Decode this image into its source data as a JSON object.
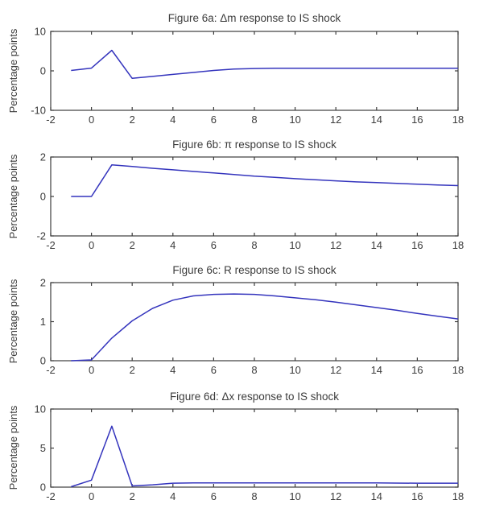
{
  "figure": {
    "ylabel_text": "Percentage points",
    "line_color": "#3434bd",
    "axis_color": "#3c3c3c",
    "text_color": "#3c3c3c",
    "background": "#ffffff"
  },
  "chart_data": [
    {
      "type": "line",
      "title": "Figure 6a: Δm response to IS shock",
      "ylabel": "Percentage points",
      "xlabel": "",
      "legend": "none",
      "grid": false,
      "xlim": [
        -2,
        18
      ],
      "ylim": [
        -10,
        10
      ],
      "xticks": [
        -2,
        0,
        2,
        4,
        6,
        8,
        10,
        12,
        14,
        16,
        18
      ],
      "yticks": [
        -10,
        0,
        10
      ],
      "x": [
        -1,
        0,
        1,
        2,
        3,
        4,
        5,
        6,
        7,
        8,
        9,
        10,
        11,
        12,
        13,
        14,
        15,
        16,
        17,
        18
      ],
      "y": [
        0.1,
        0.7,
        5.2,
        -1.9,
        -1.4,
        -0.9,
        -0.4,
        0.1,
        0.45,
        0.6,
        0.65,
        0.65,
        0.65,
        0.65,
        0.65,
        0.65,
        0.65,
        0.65,
        0.65,
        0.65
      ]
    },
    {
      "type": "line",
      "title": "Figure 6b: π response to IS shock",
      "ylabel": "Percentage points",
      "xlabel": "",
      "legend": "none",
      "grid": false,
      "xlim": [
        -2,
        18
      ],
      "ylim": [
        -2,
        2
      ],
      "xticks": [
        -2,
        0,
        2,
        4,
        6,
        8,
        10,
        12,
        14,
        16,
        18
      ],
      "yticks": [
        -2,
        0,
        2
      ],
      "x": [
        -1,
        0,
        1,
        2,
        3,
        4,
        5,
        6,
        7,
        8,
        9,
        10,
        11,
        12,
        13,
        14,
        15,
        16,
        17,
        18
      ],
      "y": [
        0,
        0,
        1.6,
        1.52,
        1.43,
        1.35,
        1.27,
        1.19,
        1.11,
        1.03,
        0.97,
        0.9,
        0.85,
        0.79,
        0.74,
        0.7,
        0.66,
        0.62,
        0.58,
        0.55
      ]
    },
    {
      "type": "line",
      "title": "Figure 6c: R response to IS shock",
      "ylabel": "Percentage points",
      "xlabel": "",
      "legend": "none",
      "grid": false,
      "xlim": [
        -2,
        18
      ],
      "ylim": [
        0,
        2
      ],
      "xticks": [
        -2,
        0,
        2,
        4,
        6,
        8,
        10,
        12,
        14,
        16,
        18
      ],
      "yticks": [
        0,
        1,
        2
      ],
      "x": [
        -1,
        0,
        1,
        2,
        3,
        4,
        5,
        6,
        7,
        8,
        9,
        10,
        11,
        12,
        13,
        14,
        15,
        16,
        17,
        18
      ],
      "y": [
        0,
        0.02,
        0.58,
        1.02,
        1.34,
        1.55,
        1.66,
        1.7,
        1.71,
        1.7,
        1.66,
        1.61,
        1.56,
        1.5,
        1.43,
        1.36,
        1.29,
        1.21,
        1.14,
        1.07
      ]
    },
    {
      "type": "line",
      "title": "Figure 6d: Δx response to IS shock",
      "ylabel": "Percentage points",
      "xlabel": "",
      "legend": "none",
      "grid": false,
      "xlim": [
        -2,
        18
      ],
      "ylim": [
        0,
        10
      ],
      "xticks": [
        -2,
        0,
        2,
        4,
        6,
        8,
        10,
        12,
        14,
        16,
        18
      ],
      "yticks": [
        0,
        5,
        10
      ],
      "x": [
        -1,
        0,
        1,
        2,
        3,
        4,
        5,
        6,
        7,
        8,
        9,
        10,
        11,
        12,
        13,
        14,
        15,
        16,
        17,
        18
      ],
      "y": [
        0.05,
        0.9,
        7.8,
        0.15,
        0.3,
        0.5,
        0.55,
        0.55,
        0.55,
        0.55,
        0.55,
        0.55,
        0.55,
        0.55,
        0.55,
        0.55,
        0.52,
        0.5,
        0.5,
        0.5
      ]
    }
  ]
}
